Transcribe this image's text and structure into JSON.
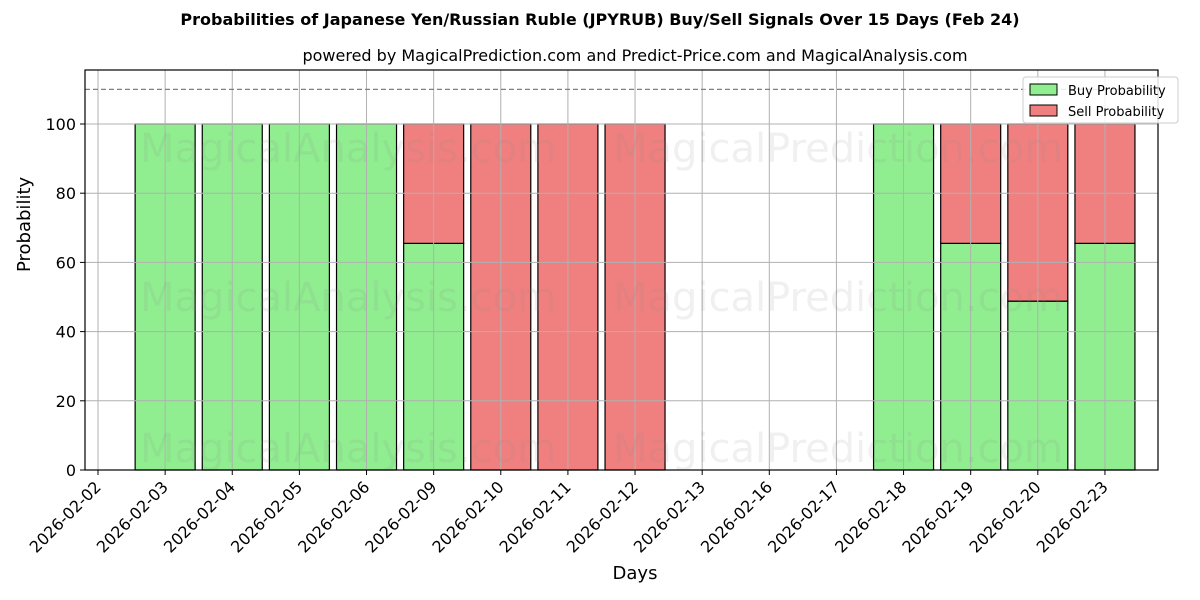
{
  "chart_data": {
    "type": "bar",
    "stacked": true,
    "title": "Probabilities of Japanese Yen/Russian Ruble (JPYRUB) Buy/Sell Signals Over 15 Days (Feb 24)",
    "subtitle": "powered by MagicalPrediction.com and Predict-Price.com and MagicalAnalysis.com",
    "xlabel": "Days",
    "ylabel": "Probability",
    "ylim": [
      0,
      115
    ],
    "yticks": [
      0,
      20,
      40,
      60,
      80,
      100
    ],
    "reference_line": 110,
    "grid": true,
    "legend_position": "upper right",
    "categories": [
      "2026-02-02",
      "2026-02-03",
      "2026-02-04",
      "2026-02-05",
      "2026-02-06",
      "2026-02-09",
      "2026-02-10",
      "2026-02-11",
      "2026-02-12",
      "2026-02-13",
      "2026-02-16",
      "2026-02-17",
      "2026-02-18",
      "2026-02-19",
      "2026-02-20",
      "2026-02-23"
    ],
    "series": [
      {
        "name": "Buy Probability",
        "color": "#90ee90",
        "values": [
          0,
          100,
          100,
          100,
          100,
          65.5,
          0,
          0,
          0,
          0,
          0,
          0,
          100,
          65.5,
          48.8,
          65.5
        ]
      },
      {
        "name": "Sell Probability",
        "color": "#f08080",
        "values": [
          0,
          0,
          0,
          0,
          0,
          34.5,
          100,
          100,
          100,
          0,
          0,
          0,
          0,
          34.5,
          51.2,
          34.5
        ]
      }
    ],
    "bars": [
      {
        "date": "2026-02-03",
        "buy": 100,
        "sell": 0
      },
      {
        "date": "2026-02-04",
        "buy": 100,
        "sell": 0
      },
      {
        "date": "2026-02-05",
        "buy": 100,
        "sell": 0
      },
      {
        "date": "2026-02-06",
        "buy": 100,
        "sell": 0
      },
      {
        "date": "2026-02-09",
        "buy": 65.5,
        "sell": 34.5
      },
      {
        "date": "2026-02-10",
        "buy": 0,
        "sell": 100
      },
      {
        "date": "2026-02-11",
        "buy": 0,
        "sell": 100
      },
      {
        "date": "2026-02-12",
        "buy": 0,
        "sell": 100
      },
      {
        "date": "2026-02-18",
        "buy": 100,
        "sell": 0
      },
      {
        "date": "2026-02-19",
        "buy": 65.5,
        "sell": 34.5
      },
      {
        "date": "2026-02-20",
        "buy": 48.8,
        "sell": 51.2
      },
      {
        "date": "2026-02-23",
        "buy": 65.5,
        "sell": 34.5
      }
    ],
    "watermarks": [
      "MagicalAnalysis.com",
      "MagicalPrediction.com"
    ]
  }
}
